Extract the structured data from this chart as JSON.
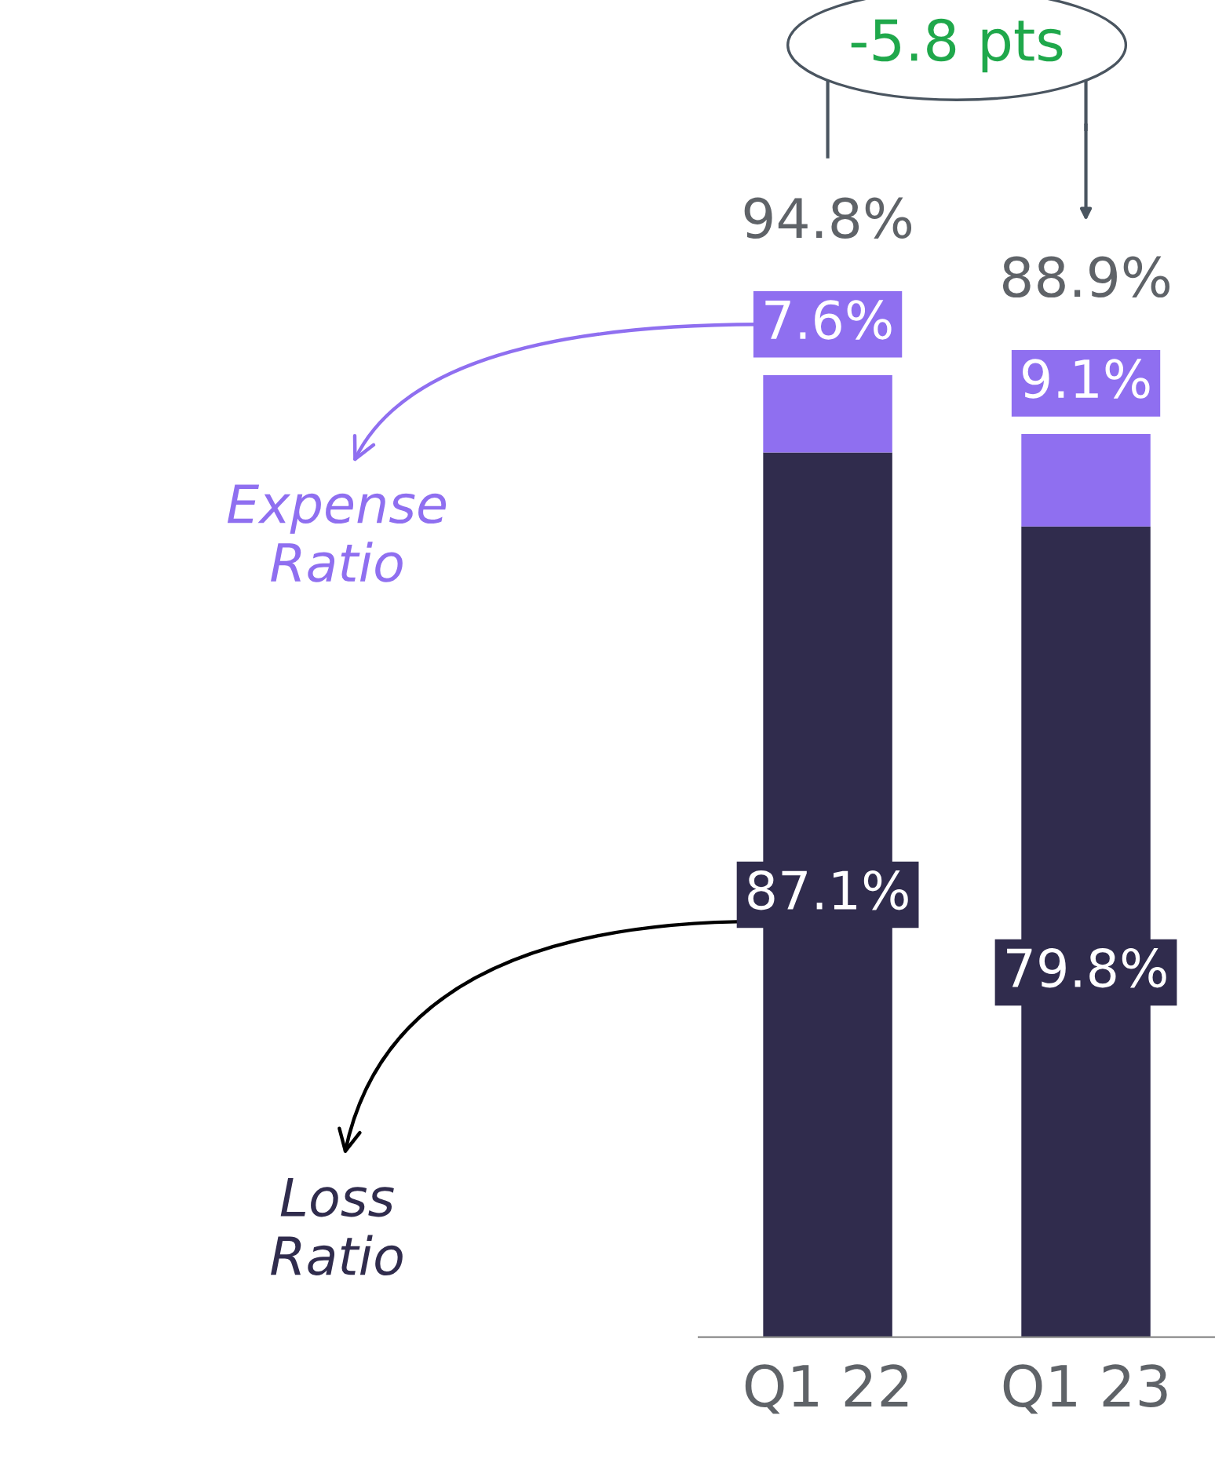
{
  "chart_data": {
    "type": "bar",
    "stacked": true,
    "categories": [
      "Q1 22",
      "Q1 23"
    ],
    "series": [
      {
        "name": "Loss Ratio",
        "color": "#302c4d",
        "values": [
          87.1,
          79.8
        ],
        "value_labels": [
          "87.1%",
          "79.8%"
        ]
      },
      {
        "name": "Expense Ratio",
        "color": "#8f6ff0",
        "values": [
          7.6,
          9.1
        ],
        "value_labels": [
          "7.6%",
          "9.1%"
        ]
      }
    ],
    "totals": [
      "94.8%",
      "88.9%"
    ],
    "annotations": [
      "-5.8 pts"
    ],
    "grid": false,
    "legend": "left"
  }
}
